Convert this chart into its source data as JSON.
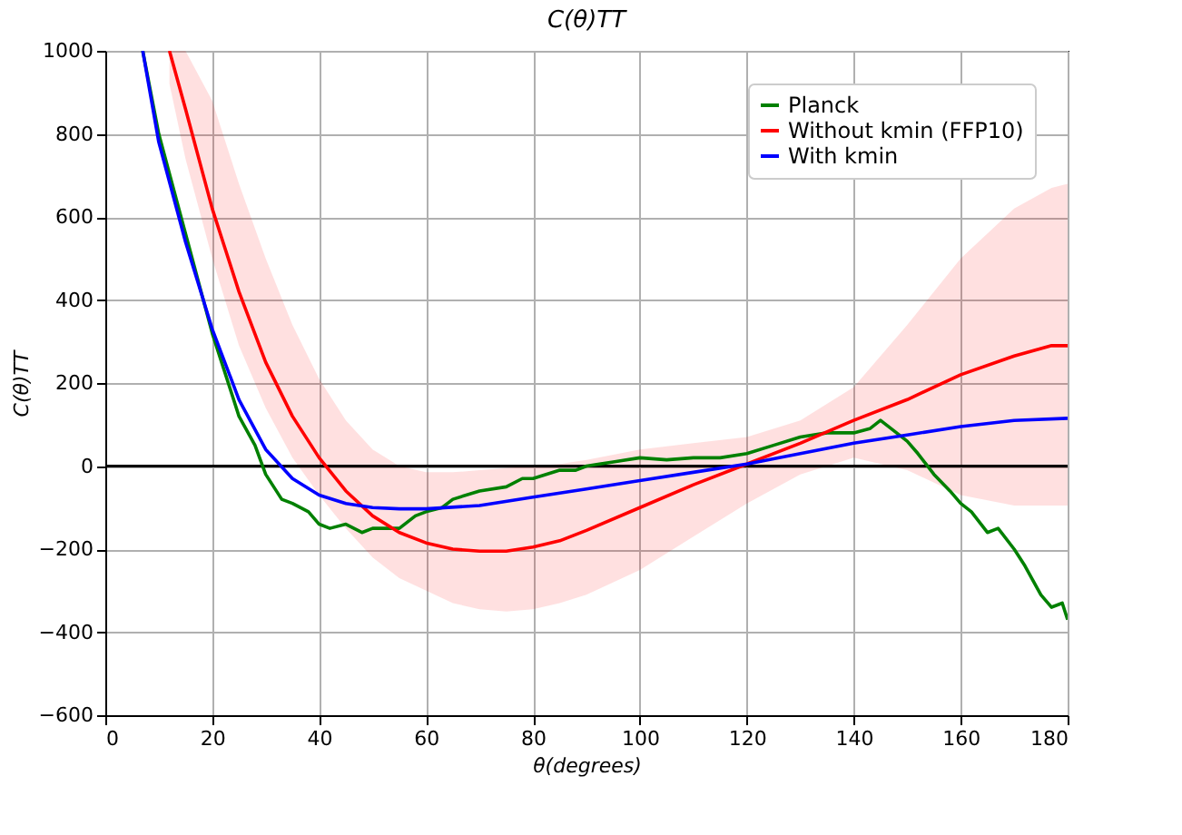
{
  "chart_data": {
    "type": "line",
    "title": "C(θ)TT",
    "xlabel": "θ(degrees)",
    "ylabel": "C(θ)TT",
    "xlim": [
      0,
      180
    ],
    "xticks": [
      0,
      20,
      40,
      60,
      80,
      100,
      120,
      140,
      160,
      180
    ],
    "ylim": [
      -600,
      1000
    ],
    "yticks": [
      -600,
      -400,
      -200,
      0,
      200,
      400,
      600,
      800,
      1000
    ],
    "grid": true,
    "legend": "top right",
    "ref_lines": [
      {
        "axis": "y",
        "value": 0,
        "color": "#000000"
      }
    ],
    "series": [
      {
        "name": "Planck",
        "color": "#008000",
        "x": [
          7,
          10,
          15,
          20,
          25,
          28,
          30,
          33,
          35,
          38,
          40,
          42,
          45,
          48,
          50,
          55,
          58,
          60,
          63,
          65,
          70,
          75,
          78,
          80,
          85,
          88,
          90,
          95,
          100,
          105,
          110,
          115,
          120,
          125,
          130,
          135,
          140,
          143,
          145,
          148,
          150,
          152,
          155,
          158,
          160,
          162,
          165,
          167,
          170,
          172,
          175,
          177,
          179,
          180
        ],
        "values": [
          1000,
          800,
          560,
          320,
          120,
          50,
          -20,
          -80,
          -90,
          -110,
          -140,
          -150,
          -140,
          -160,
          -150,
          -150,
          -120,
          -110,
          -100,
          -80,
          -60,
          -50,
          -30,
          -30,
          -10,
          -10,
          0,
          10,
          20,
          15,
          20,
          20,
          30,
          50,
          70,
          80,
          80,
          90,
          110,
          80,
          60,
          30,
          -20,
          -60,
          -90,
          -110,
          -160,
          -150,
          -200,
          -240,
          -310,
          -340,
          -330,
          -370
        ]
      },
      {
        "name": "Without kmin (FFP10)",
        "color": "#ff0000",
        "x": [
          12,
          15,
          20,
          25,
          30,
          35,
          40,
          45,
          50,
          55,
          60,
          65,
          70,
          75,
          80,
          85,
          90,
          100,
          110,
          120,
          130,
          140,
          150,
          160,
          170,
          177,
          180
        ],
        "values": [
          1000,
          860,
          620,
          420,
          250,
          120,
          20,
          -60,
          -120,
          -160,
          -185,
          -200,
          -205,
          -205,
          -195,
          -180,
          -155,
          -100,
          -45,
          5,
          55,
          110,
          160,
          220,
          265,
          290,
          290
        ],
        "upper": [
          1000,
          1000,
          880,
          680,
          500,
          340,
          210,
          110,
          40,
          0,
          -15,
          -15,
          -10,
          -5,
          0,
          5,
          15,
          40,
          55,
          70,
          110,
          190,
          340,
          500,
          620,
          670,
          680
        ],
        "lower": [
          920,
          740,
          500,
          290,
          140,
          20,
          -70,
          -150,
          -220,
          -270,
          -300,
          -330,
          -345,
          -350,
          -345,
          -330,
          -310,
          -250,
          -170,
          -90,
          -20,
          20,
          -10,
          -70,
          -95,
          -95,
          -95
        ]
      },
      {
        "name": "With kmin",
        "color": "#0000ff",
        "x": [
          7,
          10,
          15,
          20,
          25,
          30,
          35,
          40,
          45,
          50,
          55,
          60,
          70,
          80,
          90,
          100,
          110,
          120,
          130,
          140,
          150,
          160,
          170,
          180
        ],
        "values": [
          1000,
          780,
          540,
          330,
          160,
          40,
          -30,
          -70,
          -90,
          -100,
          -103,
          -103,
          -95,
          -75,
          -55,
          -35,
          -15,
          5,
          30,
          55,
          75,
          95,
          110,
          115
        ]
      }
    ]
  }
}
